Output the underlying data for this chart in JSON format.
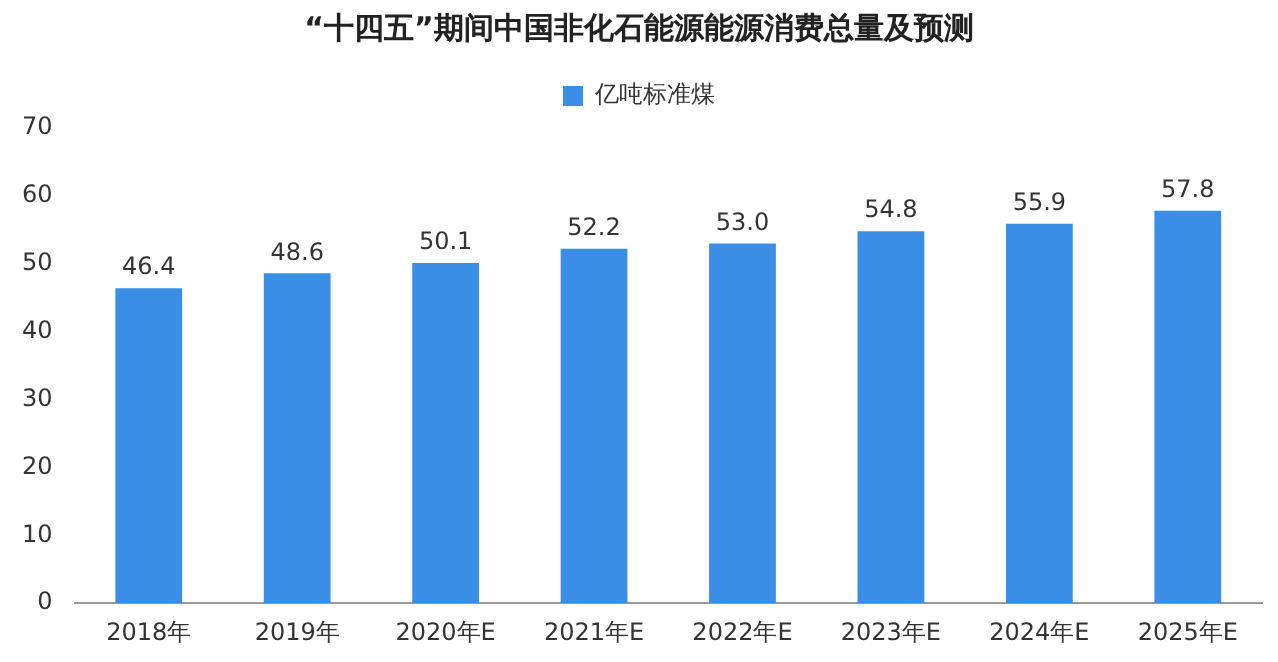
{
  "chart_data": {
    "type": "bar",
    "title": "“十四五”期间中国非化石能源能源消费总量及预测",
    "categories": [
      "2018年",
      "2019年",
      "2020年E",
      "2021年E",
      "2022年E",
      "2023年E",
      "2024年E",
      "2025年E"
    ],
    "series": [
      {
        "name": "亿吨标准煤",
        "color": "#3a8ee6",
        "values": [
          46.4,
          48.6,
          50.1,
          52.2,
          53.0,
          54.8,
          55.9,
          57.8
        ],
        "value_labels": [
          "46.4",
          "48.6",
          "50.1",
          "52.2",
          "53.0",
          "54.8",
          "55.9",
          "57.8"
        ]
      }
    ],
    "ylim": [
      0,
      70
    ],
    "yticks": [
      0,
      10,
      20,
      30,
      40,
      50,
      60,
      70
    ],
    "grid": false,
    "legend": "top"
  }
}
